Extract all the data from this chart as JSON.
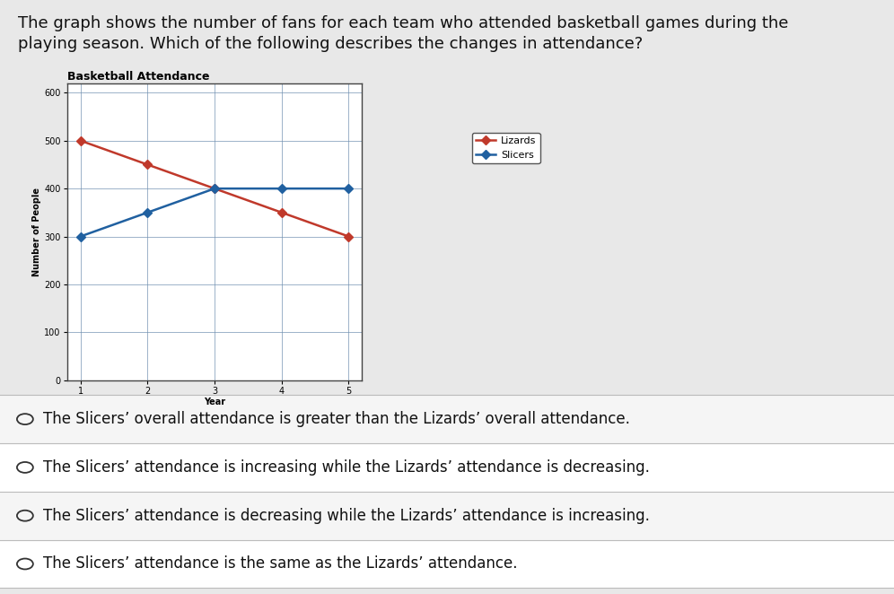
{
  "title": "Basketball Attendance",
  "xlabel": "Year",
  "ylabel": "Number of People",
  "x": [
    1,
    2,
    3,
    4,
    5
  ],
  "lizards_y": [
    500,
    450,
    400,
    350,
    300
  ],
  "slicers_y": [
    300,
    350,
    400,
    400,
    400
  ],
  "lizards_color": "#c0392b",
  "slicers_color": "#2060a0",
  "ylim": [
    0,
    620
  ],
  "yticks": [
    0,
    100,
    200,
    300,
    400,
    500,
    600
  ],
  "xticks": [
    1,
    2,
    3,
    4,
    5
  ],
  "legend_lizards": "Lizards",
  "legend_slicers": "Slicers",
  "chart_bg": "#ffffff",
  "outer_bg": "#e8e8e8",
  "grid_color": "#7090b0",
  "marker": "D",
  "linewidth": 1.8,
  "markersize": 5,
  "title_fontsize": 9,
  "axis_label_fontsize": 7,
  "tick_fontsize": 7,
  "legend_fontsize": 8,
  "question_fontsize": 13,
  "answer_fontsize": 12,
  "question_text": "The graph shows the number of fans for each team who attended basketball games during the\nplaying season. Which of the following describes the changes in attendance?",
  "answers": [
    "The Slicers’ overall attendance is greater than the Lizards’ overall attendance.",
    "The Slicers’ attendance is increasing while the Lizards’ attendance is decreasing.",
    "The Slicers’ attendance is decreasing while the Lizards’ attendance is increasing.",
    "The Slicers’ attendance is the same as the Lizards’ attendance."
  ],
  "separator_color": "#bbbbbb",
  "answer_bg_colors": [
    "#f5f5f5",
    "#ffffff",
    "#f5f5f5",
    "#ffffff"
  ]
}
